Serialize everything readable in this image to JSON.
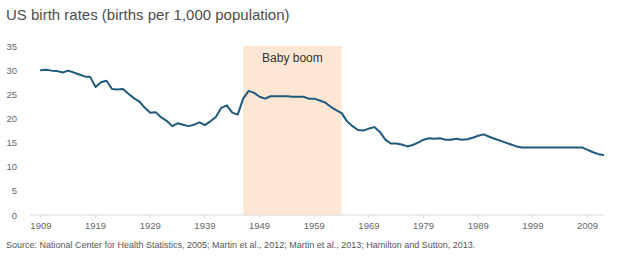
{
  "chart_data": {
    "type": "line",
    "title": "US birth rates (births per 1,000 population)",
    "source": "Source: National Center for Health Statistics, 2005; Martin et al., 2012; Martin et al., 2013; Hamilton and Sutton, 2013.",
    "annotations": [
      {
        "text": "Baby boom",
        "start": 1946,
        "end": 1964
      }
    ],
    "x": [
      1909,
      1910,
      1911,
      1912,
      1913,
      1914,
      1915,
      1916,
      1917,
      1918,
      1919,
      1920,
      1921,
      1922,
      1923,
      1924,
      1925,
      1926,
      1927,
      1928,
      1929,
      1930,
      1931,
      1932,
      1933,
      1934,
      1935,
      1936,
      1937,
      1938,
      1939,
      1940,
      1941,
      1942,
      1943,
      1944,
      1945,
      1946,
      1947,
      1948,
      1949,
      1950,
      1951,
      1952,
      1953,
      1954,
      1955,
      1956,
      1957,
      1958,
      1959,
      1960,
      1961,
      1962,
      1963,
      1964,
      1965,
      1966,
      1967,
      1968,
      1969,
      1970,
      1971,
      1972,
      1973,
      1974,
      1975,
      1976,
      1977,
      1978,
      1979,
      1980,
      1981,
      1982,
      1983,
      1984,
      1985,
      1986,
      1987,
      1988,
      1989,
      1990,
      1991,
      1992,
      1993,
      1994,
      1995,
      1996,
      1997,
      1998,
      1999,
      2000,
      2001,
      2002,
      2003,
      2004,
      2005,
      2006,
      2007,
      2008,
      2009,
      2010,
      2011,
      2012
    ],
    "values": [
      30.0,
      30.1,
      29.9,
      29.8,
      29.5,
      29.9,
      29.5,
      29.1,
      28.7,
      28.6,
      26.5,
      27.5,
      27.8,
      26.1,
      26.0,
      26.1,
      25.1,
      24.2,
      23.5,
      22.2,
      21.2,
      21.3,
      20.2,
      19.5,
      18.4,
      19.0,
      18.7,
      18.4,
      18.7,
      19.2,
      18.6,
      19.4,
      20.3,
      22.2,
      22.7,
      21.2,
      20.8,
      24.1,
      25.7,
      25.3,
      24.5,
      24.1,
      24.6,
      24.6,
      24.6,
      24.6,
      24.5,
      24.5,
      24.5,
      24.1,
      24.1,
      23.7,
      23.3,
      22.4,
      21.7,
      21.1,
      19.4,
      18.4,
      17.6,
      17.5,
      17.9,
      18.2,
      17.2,
      15.6,
      14.8,
      14.8,
      14.6,
      14.2,
      14.5,
      15.0,
      15.6,
      15.9,
      15.8,
      15.9,
      15.6,
      15.6,
      15.8,
      15.6,
      15.7,
      16.0,
      16.4,
      16.7,
      16.2,
      15.8,
      15.4,
      15.0,
      14.6,
      14.2,
      14.0,
      14.0,
      14.0,
      14.0,
      14.0,
      14.0,
      14.0,
      14.0,
      14.0,
      14.0,
      14.0,
      14.0,
      13.5,
      13.0,
      12.6,
      12.4
    ],
    "color": "#1e5a7d",
    "xlim": [
      1907,
      2012
    ],
    "xticks": [
      1909,
      1919,
      1929,
      1939,
      1949,
      1959,
      1969,
      1979,
      1989,
      1999,
      2009
    ],
    "ylim": [
      0,
      35
    ],
    "yticks": [
      0,
      5,
      10,
      15,
      20,
      25,
      30,
      35
    ],
    "grid": false
  }
}
